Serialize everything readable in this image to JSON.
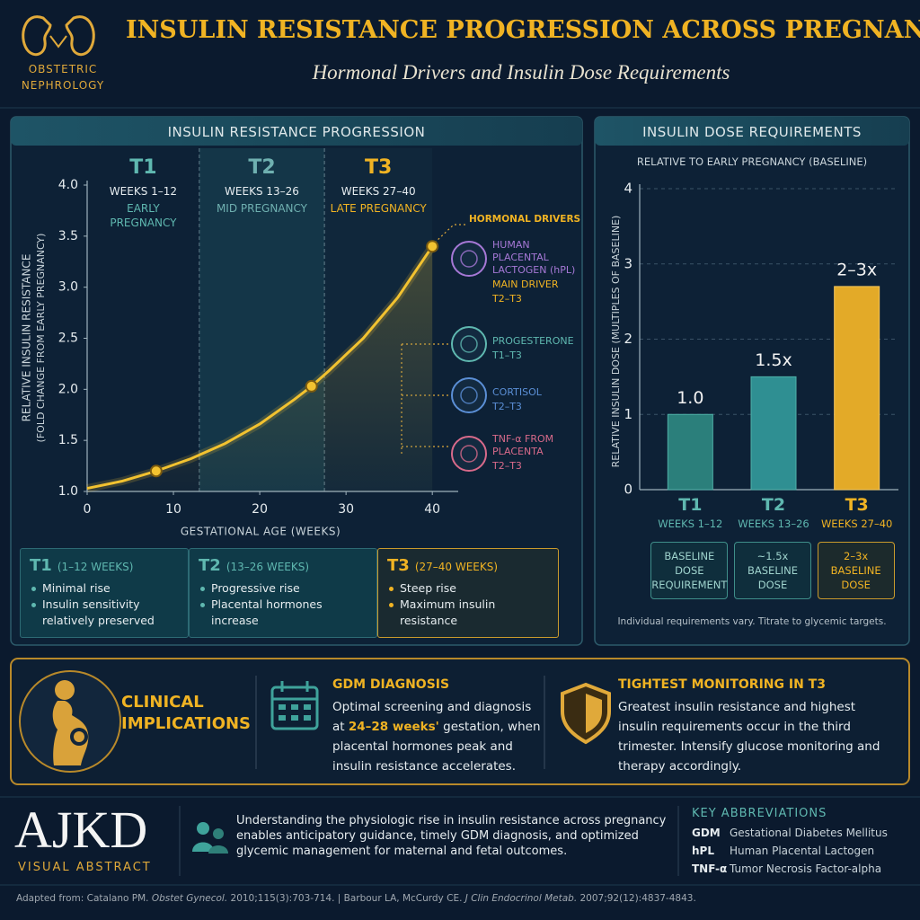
{
  "header": {
    "logo_line1": "OBSTETRIC",
    "logo_line2": "NEPHROLOGY",
    "title": "INSULIN RESISTANCE PROGRESSION ACROSS PREGNANCY",
    "subtitle": "Hormonal Drivers and Insulin Dose Requirements"
  },
  "chart_data": [
    {
      "type": "line",
      "title": "INSULIN RESISTANCE PROGRESSION",
      "xlabel": "GESTATIONAL AGE (WEEKS)",
      "ylabel": "RELATIVE INSULIN RESISTANCE",
      "ylabel_note": "(FOLD CHANGE FROM EARLY PREGNANCY)",
      "xlim": [
        0,
        43
      ],
      "ylim": [
        1,
        4
      ],
      "xticks": [
        0,
        10,
        20,
        30,
        40
      ],
      "yticks": [
        {
          "value": 1,
          "label": "1.0"
        },
        1.5,
        {
          "value": 2,
          "label": "2.0"
        },
        2.5,
        {
          "value": 3,
          "label": "3.0"
        },
        3.5,
        {
          "value": 4,
          "label": "4.0"
        }
      ],
      "series": [
        {
          "color": "#f2c230",
          "x": [
            0,
            4,
            8,
            12,
            16,
            20,
            24,
            26,
            28,
            32,
            36,
            40
          ],
          "values": [
            1.03,
            1.1,
            1.2,
            1.32,
            1.47,
            1.66,
            1.9,
            2.03,
            2.18,
            2.5,
            2.9,
            3.4
          ]
        },
        {
          "color": "#f2c230",
          "marker": true,
          "x": [
            8,
            26,
            40
          ],
          "values": [
            1.2,
            2.03,
            3.4
          ]
        }
      ],
      "bands": [
        {
          "label": "T1",
          "weeks": "WEEKS 1–12",
          "phase": "EARLY PREGNANCY",
          "from": 0,
          "to": 13,
          "color": "#5fb8b0"
        },
        {
          "label": "T2",
          "weeks": "WEEKS 13–26",
          "phase": "MID PREGNANCY",
          "from": 13,
          "to": 27.5,
          "color": "#6fb0b0"
        },
        {
          "label": "T3",
          "weeks": "WEEKS 27–40",
          "phase": "LATE PREGNANCY",
          "from": 27.5,
          "to": 40,
          "color": "#f0b323"
        }
      ],
      "drivers_title": "HORMONAL DRIVERS",
      "drivers": [
        {
          "name": "HUMAN PLACENTAL LACTOGEN (hPL)",
          "note": "MAIN DRIVER",
          "timing": "T2–T3",
          "color": "#a678d6"
        },
        {
          "name": "PROGESTERONE",
          "timing": "T1–T3",
          "color": "#5fb8b0"
        },
        {
          "name": "CORTISOL",
          "timing": "T2–T3",
          "color": "#5b8fd6"
        },
        {
          "name": "TNF-α FROM PLACENTA",
          "timing": "T2–T3",
          "color": "#d86a8a"
        }
      ]
    },
    {
      "type": "bar",
      "title": "INSULIN DOSE REQUIREMENTS",
      "subtitle": "RELATIVE TO EARLY PREGNANCY (BASELINE)",
      "ylabel": "RELATIVE INSULIN DOSE (MULTIPLES OF BASELINE)",
      "categories": [
        "T1",
        "T2",
        "T3"
      ],
      "category_notes": [
        "WEEKS 1–12",
        "WEEKS 13–26",
        "WEEKS 27–40"
      ],
      "values": [
        1.0,
        1.5,
        2.7
      ],
      "value_labels": [
        "1.0",
        "1.5x",
        "2–3x"
      ],
      "colors": [
        "#2b7f7b",
        "#2f8f92",
        "#e3aa28"
      ],
      "ylim": [
        0,
        4
      ],
      "yticks": [
        0,
        1,
        2,
        3,
        4
      ],
      "grid": true,
      "notes": [
        "BASELINE DOSE REQUIREMENT",
        "~1.5x BASELINE DOSE",
        "2–3x BASELINE DOSE"
      ],
      "footnote": "Individual requirements vary. Titrate to glycemic targets."
    }
  ],
  "trimester_summary": [
    {
      "label": "T1",
      "weeks": "(1–12 WEEKS)",
      "points": [
        "Minimal rise",
        "Insulin sensitivity relatively preserved"
      ]
    },
    {
      "label": "T2",
      "weeks": "(13–26 WEEKS)",
      "points": [
        "Progressive rise",
        "Placental hormones increase"
      ]
    },
    {
      "label": "T3",
      "weeks": "(27–40 WEEKS)",
      "points": [
        "Steep rise",
        "Maximum insulin resistance"
      ]
    }
  ],
  "clinical": {
    "title": "CLINICAL IMPLICATIONS",
    "gdm_title": "GDM DIAGNOSIS",
    "gdm_text": [
      "Optimal screening and diagnosis at ",
      "24–28 weeks'",
      " gestation, when placental hormones peak and insulin resistance accelerates."
    ],
    "monitor_title": "TIGHTEST MONITORING IN T3",
    "monitor_text": "Greatest insulin resistance and highest insulin requirements occur in the third trimester. Intensify glucose monitoring and therapy accordingly."
  },
  "footer": {
    "brand": "AJKD",
    "brand_sub": "VISUAL ABSTRACT",
    "summary": "Understanding the physiologic rise in insulin resistance across pregnancy enables anticipatory guidance, timely GDM diagnosis, and optimized glycemic management for maternal and fetal outcomes.",
    "abbr_title": "KEY ABBREVIATIONS",
    "abbreviations": [
      [
        "GDM",
        "Gestational Diabetes Mellitus"
      ],
      [
        "hPL",
        "Human Placental Lactogen"
      ],
      [
        "TNF-α",
        "Tumor Necrosis Factor-alpha"
      ]
    ],
    "citation": [
      "Adapted from: Catalano PM. ",
      "Obstet Gynecol.",
      " 2010;115(3):703-714. | Barbour LA, McCurdy CE. ",
      "J Clin Endocrinol Metab.",
      " 2007;92(12):4837-4843."
    ]
  }
}
